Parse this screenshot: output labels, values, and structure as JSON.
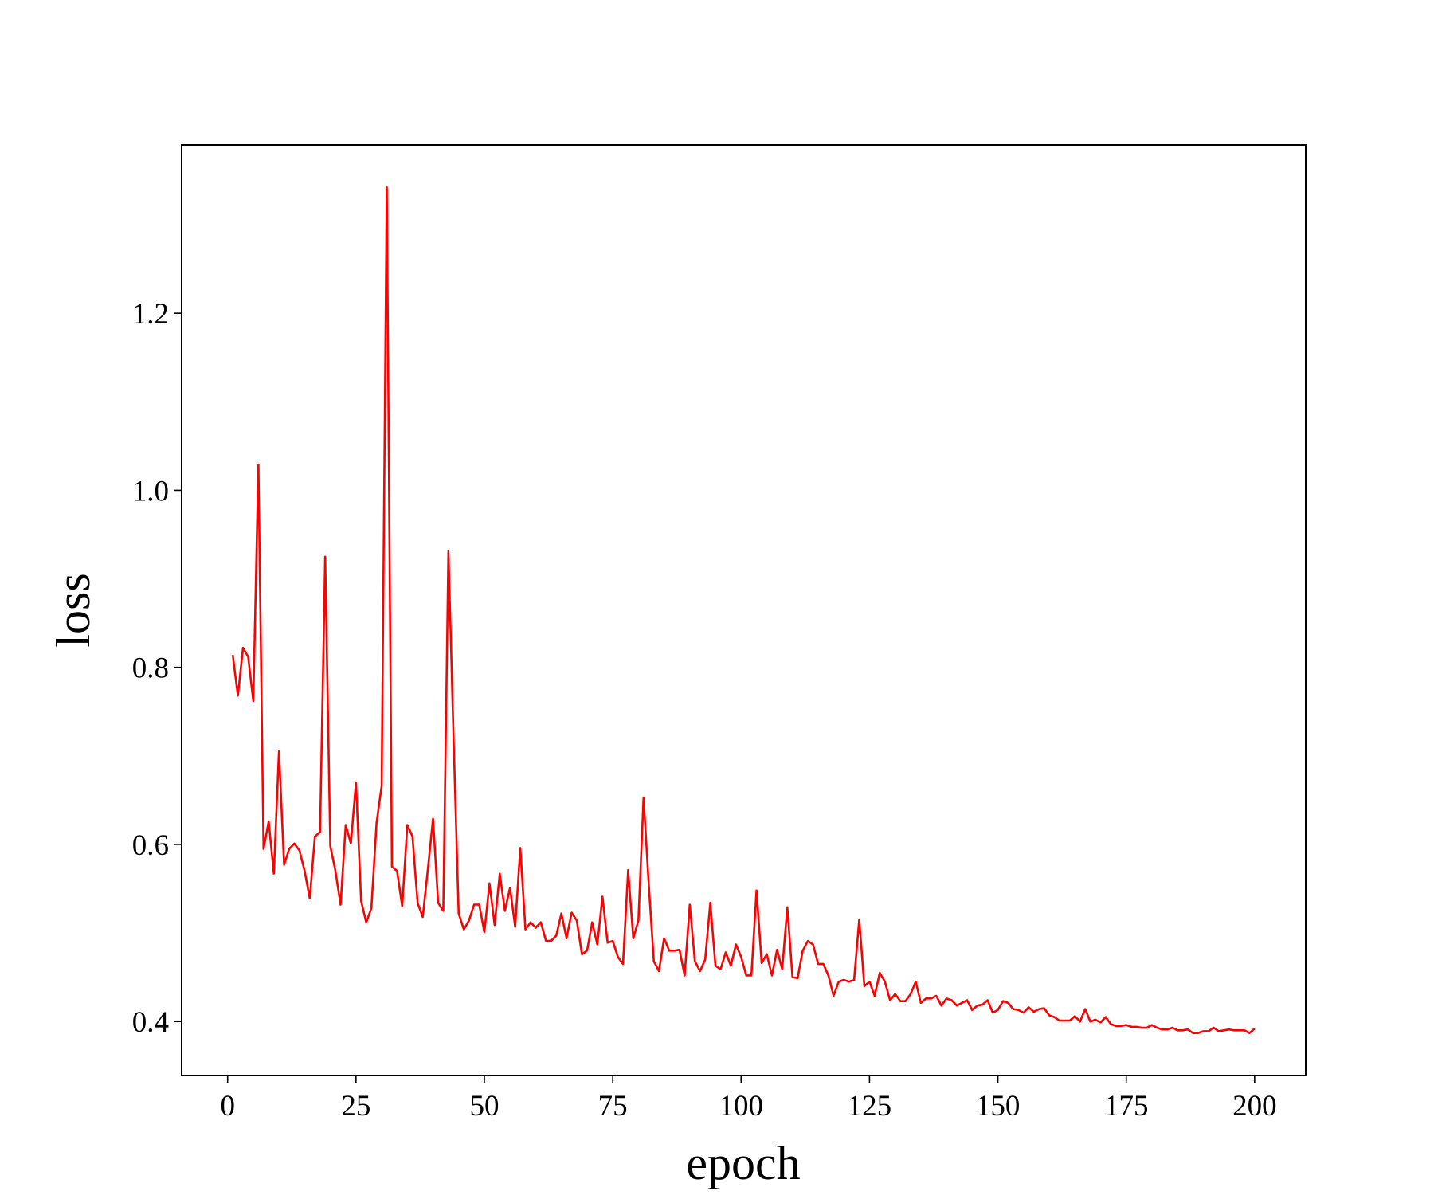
{
  "chart_data": {
    "type": "line",
    "x_label": "epoch",
    "y_label": "loss",
    "color": "#ff0000",
    "x": [
      1,
      2,
      3,
      4,
      5,
      6,
      7,
      8,
      9,
      10,
      11,
      12,
      13,
      14,
      15,
      16,
      17,
      18,
      19,
      20,
      21,
      22,
      23,
      24,
      25,
      26,
      27,
      28,
      29,
      30,
      31,
      32,
      33,
      34,
      35,
      36,
      37,
      38,
      39,
      40,
      41,
      42,
      43,
      44,
      45,
      46,
      47,
      48,
      49,
      50,
      51,
      52,
      53,
      54,
      55,
      56,
      57,
      58,
      59,
      60,
      61,
      62,
      63,
      64,
      65,
      66,
      67,
      68,
      69,
      70,
      71,
      72,
      73,
      74,
      75,
      76,
      77,
      78,
      79,
      80,
      81,
      82,
      83,
      84,
      85,
      86,
      87,
      88,
      89,
      90,
      91,
      92,
      93,
      94,
      95,
      96,
      97,
      98,
      99,
      100,
      101,
      102,
      103,
      104,
      105,
      106,
      107,
      108,
      109,
      110,
      111,
      112,
      113,
      114,
      115,
      116,
      117,
      118,
      119,
      120,
      121,
      122,
      123,
      124,
      125,
      126,
      127,
      128,
      129,
      130,
      131,
      132,
      133,
      134,
      135,
      136,
      137,
      138,
      139,
      140,
      141,
      142,
      143,
      144,
      145,
      146,
      147,
      148,
      149,
      150,
      151,
      152,
      153,
      154,
      155,
      156,
      157,
      158,
      159,
      160,
      161,
      162,
      163,
      164,
      165,
      166,
      167,
      168,
      169,
      170,
      171,
      172,
      173,
      174,
      175,
      176,
      177,
      178,
      179,
      180,
      181,
      182,
      183,
      184,
      185,
      186,
      187,
      188,
      189,
      190,
      191,
      192,
      193,
      194,
      195,
      196,
      197,
      198,
      199,
      200
    ],
    "values": [
      0.814,
      0.768,
      0.822,
      0.812,
      0.762,
      1.029,
      0.595,
      0.626,
      0.567,
      0.705,
      0.577,
      0.595,
      0.601,
      0.593,
      0.57,
      0.539,
      0.609,
      0.614,
      0.925,
      0.598,
      0.57,
      0.532,
      0.622,
      0.601,
      0.67,
      0.536,
      0.512,
      0.528,
      0.624,
      0.666,
      1.342,
      0.575,
      0.57,
      0.53,
      0.622,
      0.609,
      0.534,
      0.518,
      0.572,
      0.629,
      0.534,
      0.525,
      0.931,
      0.72,
      0.522,
      0.504,
      0.514,
      0.532,
      0.532,
      0.501,
      0.556,
      0.509,
      0.567,
      0.525,
      0.551,
      0.507,
      0.596,
      0.504,
      0.512,
      0.506,
      0.512,
      0.491,
      0.491,
      0.497,
      0.522,
      0.494,
      0.523,
      0.514,
      0.476,
      0.48,
      0.512,
      0.487,
      0.541,
      0.489,
      0.491,
      0.473,
      0.465,
      0.571,
      0.494,
      0.514,
      0.653,
      0.556,
      0.468,
      0.457,
      0.494,
      0.48,
      0.48,
      0.481,
      0.452,
      0.532,
      0.468,
      0.457,
      0.47,
      0.534,
      0.463,
      0.459,
      0.478,
      0.463,
      0.487,
      0.473,
      0.452,
      0.452,
      0.548,
      0.466,
      0.476,
      0.452,
      0.481,
      0.459,
      0.529,
      0.45,
      0.449,
      0.48,
      0.491,
      0.487,
      0.465,
      0.465,
      0.452,
      0.429,
      0.445,
      0.447,
      0.445,
      0.447,
      0.515,
      0.44,
      0.445,
      0.429,
      0.455,
      0.445,
      0.424,
      0.431,
      0.423,
      0.423,
      0.431,
      0.445,
      0.421,
      0.426,
      0.426,
      0.429,
      0.418,
      0.426,
      0.424,
      0.418,
      0.421,
      0.424,
      0.413,
      0.418,
      0.419,
      0.424,
      0.41,
      0.413,
      0.423,
      0.421,
      0.414,
      0.413,
      0.41,
      0.416,
      0.411,
      0.414,
      0.415,
      0.407,
      0.405,
      0.401,
      0.401,
      0.401,
      0.406,
      0.4,
      0.414,
      0.4,
      0.402,
      0.399,
      0.405,
      0.397,
      0.395,
      0.395,
      0.396,
      0.394,
      0.394,
      0.393,
      0.393,
      0.396,
      0.393,
      0.391,
      0.391,
      0.393,
      0.39,
      0.39,
      0.391,
      0.387,
      0.387,
      0.389,
      0.389,
      0.393,
      0.389,
      0.39,
      0.391,
      0.39,
      0.39,
      0.39,
      0.387,
      0.392
    ],
    "xlim": [
      -8.95,
      209.95
    ],
    "ylim": [
      0.339,
      1.39
    ],
    "xticks": [
      0,
      25,
      50,
      75,
      100,
      125,
      150,
      175,
      200
    ],
    "yticks": [
      0.4,
      0.6,
      0.8,
      {
        "value": 1,
        "label": "1.0"
      },
      1.2
    ]
  }
}
